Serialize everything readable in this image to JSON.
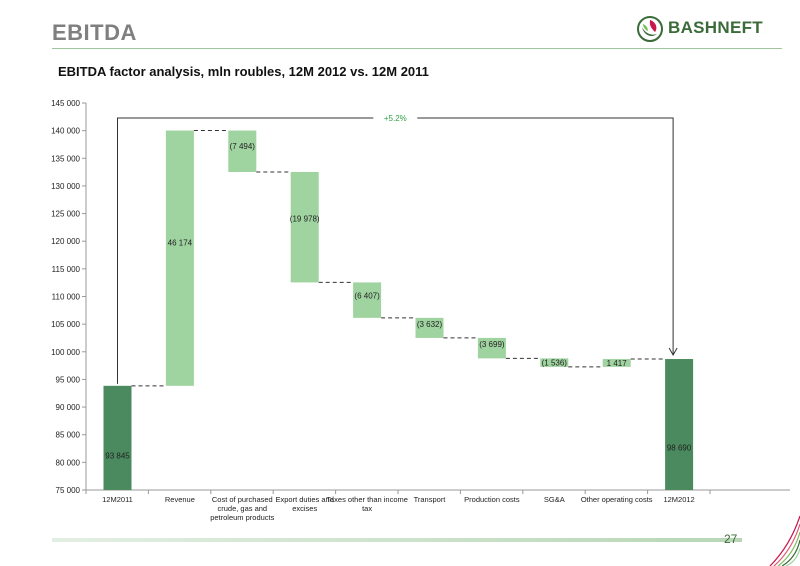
{
  "header": {
    "title": "EBITDA",
    "subtitle": "EBITDA factor analysis, mln roubles, 12M 2012 vs. 12M 2011",
    "logo_text": "BASHNEFT"
  },
  "footer": {
    "page_number": "27"
  },
  "colors": {
    "total_bar": "#4a8a5e",
    "change_bar": "#9fd39f",
    "logo_green": "#3a6b38",
    "logo_red": "#c8174a",
    "annotation_green": "#2e9e44"
  },
  "chart_data": {
    "type": "bar",
    "subtype": "waterfall",
    "title": "EBITDA factor analysis, mln roubles, 12M 2012 vs. 12M 2011",
    "categories": [
      "12M2011",
      "Revenue",
      "Cost of purchased crude, gas and petroleum products",
      "Export duties and excises",
      "Taxes other than income tax",
      "Transport",
      "Production costs",
      "SG&A",
      "Other operating costs",
      "12M2012"
    ],
    "values": [
      93845,
      46174,
      -7494,
      -19978,
      -6407,
      -3632,
      -3699,
      -1536,
      1417,
      98690
    ],
    "bar_kinds": [
      "total",
      "change",
      "change",
      "change",
      "change",
      "change",
      "change",
      "change",
      "change",
      "total"
    ],
    "data_labels": [
      "93 845",
      "46 174",
      "(7 494)",
      "(19 978)",
      "(6 407)",
      "(3 632)",
      "(3 699)",
      "(1 536)",
      "1 417",
      "98 690"
    ],
    "ylim": [
      75000,
      145000
    ],
    "yticks": [
      75000,
      80000,
      85000,
      90000,
      95000,
      100000,
      105000,
      110000,
      115000,
      120000,
      125000,
      130000,
      135000,
      140000,
      145000
    ],
    "ytick_labels": [
      "75 000",
      "80 000",
      "85 000",
      "90 000",
      "95 000",
      "100 000",
      "105 000",
      "110 000",
      "115 000",
      "120 000",
      "125 000",
      "130 000",
      "135 000",
      "140 000",
      "145 000"
    ],
    "xtick_lines": [
      [
        "12M2011"
      ],
      [
        "Revenue"
      ],
      [
        "Cost of purchased",
        "crude, gas and",
        "petroleum products"
      ],
      [
        "Export duties and",
        "excises"
      ],
      [
        "Taxes other than income",
        "tax"
      ],
      [
        "Transport"
      ],
      [
        "Production costs"
      ],
      [
        "SG&A"
      ],
      [
        "Other operating costs"
      ],
      [
        "12M2012"
      ]
    ],
    "annotation": "+5.2%",
    "grid": false,
    "legend": "none"
  }
}
